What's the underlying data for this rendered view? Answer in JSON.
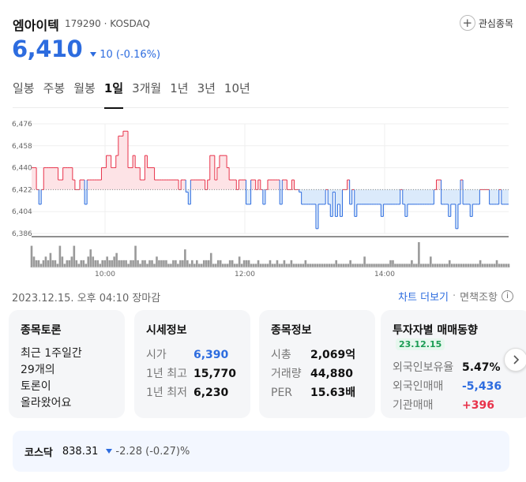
{
  "stock": {
    "name": "엠아이텍",
    "code": "179290",
    "market": "KOSDAQ",
    "code_line": "179290 · KOSDAQ"
  },
  "watch": {
    "label": "관심종목"
  },
  "price": {
    "current": "6,410",
    "change": "10 (-0.16%)"
  },
  "tabs": [
    {
      "label": "일봉"
    },
    {
      "label": "주봉"
    },
    {
      "label": "월봉"
    },
    {
      "label": "1일"
    },
    {
      "label": "3개월"
    },
    {
      "label": "1년"
    },
    {
      "label": "3년"
    },
    {
      "label": "10년"
    }
  ],
  "active_tab": "1일",
  "chart_data": {
    "type": "area",
    "title": "",
    "y_ticks": [
      "6,476",
      "6,458",
      "6,440",
      "6,422",
      "6,404",
      "6,386"
    ],
    "ylim": [
      6386,
      6476
    ],
    "reference": 6422,
    "x_ticks": [
      "10:00",
      "12:00",
      "14:00"
    ],
    "colors": {
      "up": "#e8324a",
      "down": "#2d6cdf",
      "up_fill": "#fde3e6",
      "down_fill": "#dbeafb"
    },
    "series": [
      {
        "name": "price",
        "values": [
          6440,
          6440,
          6422,
          6410,
          6422,
          6440,
          6440,
          6440,
          6440,
          6440,
          6440,
          6430,
          6430,
          6440,
          6440,
          6440,
          6440,
          6430,
          6422,
          6422,
          6430,
          6430,
          6410,
          6430,
          6430,
          6430,
          6430,
          6430,
          6430,
          6440,
          6440,
          6450,
          6450,
          6440,
          6440,
          6450,
          6466,
          6466,
          6470,
          6470,
          6440,
          6440,
          6450,
          6440,
          6440,
          6430,
          6430,
          6450,
          6440,
          6440,
          6440,
          6430,
          6430,
          6430,
          6430,
          6430,
          6430,
          6430,
          6430,
          6430,
          6430,
          6422,
          6430,
          6430,
          6420,
          6410,
          6430,
          6430,
          6430,
          6430,
          6430,
          6430,
          6422,
          6430,
          6450,
          6450,
          6430,
          6440,
          6450,
          6450,
          6450,
          6440,
          6430,
          6430,
          6430,
          6422,
          6430,
          6430,
          6430,
          6410,
          6410,
          6430,
          6430,
          6422,
          6430,
          6422,
          6410,
          6422,
          6430,
          6430,
          6430,
          6430,
          6430,
          6410,
          6430,
          6430,
          6422,
          6422,
          6430,
          6422,
          6422,
          6420,
          6410,
          6410,
          6410,
          6410,
          6410,
          6410,
          6390,
          6410,
          6410,
          6410,
          6422,
          6410,
          6400,
          6420,
          6400,
          6410,
          6400,
          6422,
          6422,
          6430,
          6410,
          6422,
          6400,
          6410,
          6410,
          6410,
          6410,
          6410,
          6410,
          6410,
          6410,
          6410,
          6410,
          6400,
          6410,
          6410,
          6410,
          6410,
          6410,
          6410,
          6410,
          6422,
          6410,
          6400,
          6410,
          6410,
          6410,
          6410,
          6410,
          6410,
          6410,
          6410,
          6410,
          6410,
          6410,
          6422,
          6430,
          6430,
          6410,
          6410,
          6410,
          6400,
          6410,
          6410,
          6390,
          6410,
          6430,
          6410,
          6410,
          6410,
          6400,
          6410,
          6410,
          6410,
          6422,
          6422,
          6422,
          6422,
          6410,
          6410,
          6410,
          6410,
          6422,
          6410,
          6410,
          6410,
          6410
        ]
      }
    ],
    "volume": [
      6,
      3,
      2,
      2,
      1,
      2,
      3,
      2,
      4,
      2,
      2,
      1,
      6,
      3,
      1,
      2,
      2,
      3,
      6,
      2,
      1,
      2,
      2,
      1,
      3,
      5,
      3,
      2,
      2,
      1,
      2,
      2,
      3,
      2,
      2,
      3,
      4,
      2,
      2,
      2,
      2,
      1,
      2,
      2,
      6,
      2,
      1,
      2,
      2,
      1,
      2,
      2,
      1,
      3,
      2,
      2,
      2,
      2,
      1,
      1,
      2,
      2,
      1,
      2,
      2,
      5,
      2,
      1,
      2,
      1,
      2,
      1,
      1,
      2,
      2,
      2,
      4,
      1,
      1,
      2,
      2,
      1,
      1,
      1,
      2,
      2,
      1,
      1,
      3,
      1,
      2,
      2,
      2,
      1,
      1,
      1,
      2,
      1,
      1,
      1,
      1,
      2,
      1,
      1,
      2,
      1,
      1,
      2,
      1,
      1,
      2,
      1,
      1,
      1,
      1,
      1,
      2,
      1,
      1,
      1,
      1,
      1,
      1,
      1,
      1,
      1,
      1,
      1,
      1,
      2,
      1,
      1,
      1,
      1,
      1,
      2,
      1,
      1,
      1,
      1,
      1,
      3,
      1,
      1,
      1,
      1,
      1,
      1,
      1,
      1,
      1,
      1,
      2,
      2,
      1,
      1,
      1,
      1,
      1,
      1,
      1,
      2,
      1,
      1,
      7,
      1,
      1,
      1,
      1,
      3,
      1,
      1,
      1,
      1,
      1,
      1,
      1,
      2,
      1,
      1,
      1,
      1,
      1,
      1,
      1,
      1,
      1,
      1,
      1,
      1,
      2,
      1,
      1,
      1,
      1,
      1,
      1,
      2,
      1,
      1,
      1,
      1,
      1
    ]
  },
  "info": {
    "timestamp": "2023.12.15. 오후 04:10 장마감",
    "chart_more": "차트 더보기",
    "separator": "·",
    "disclaimer": "면책조항"
  },
  "cards": {
    "discussion": {
      "title": "종목토론",
      "lines": [
        "최근 1주일간",
        "29개의",
        "토론이",
        "올라왔어요"
      ]
    },
    "market": {
      "title": "시세정보",
      "rows": [
        {
          "k": "시가",
          "v": "6,390"
        },
        {
          "k": "1년 최고",
          "v": "15,770"
        },
        {
          "k": "1년 최저",
          "v": "6,230"
        }
      ]
    },
    "company": {
      "title": "종목정보",
      "rows": [
        {
          "k": "시총",
          "v": "2,069억"
        },
        {
          "k": "거래량",
          "v": "44,880"
        },
        {
          "k": "PER",
          "v": "15.63배"
        }
      ]
    },
    "investor": {
      "title": "투자자별 매매동향",
      "badge": "23.12.15",
      "rows": [
        {
          "k": "외국인보유율",
          "v": "5.47%"
        },
        {
          "k": "외국인매매",
          "v": "-5,436"
        },
        {
          "k": "기관매매",
          "v": "+396"
        }
      ]
    }
  },
  "index": {
    "name": "코스닥",
    "value": "838.31",
    "change": "-2.28 (-0.27)%"
  }
}
